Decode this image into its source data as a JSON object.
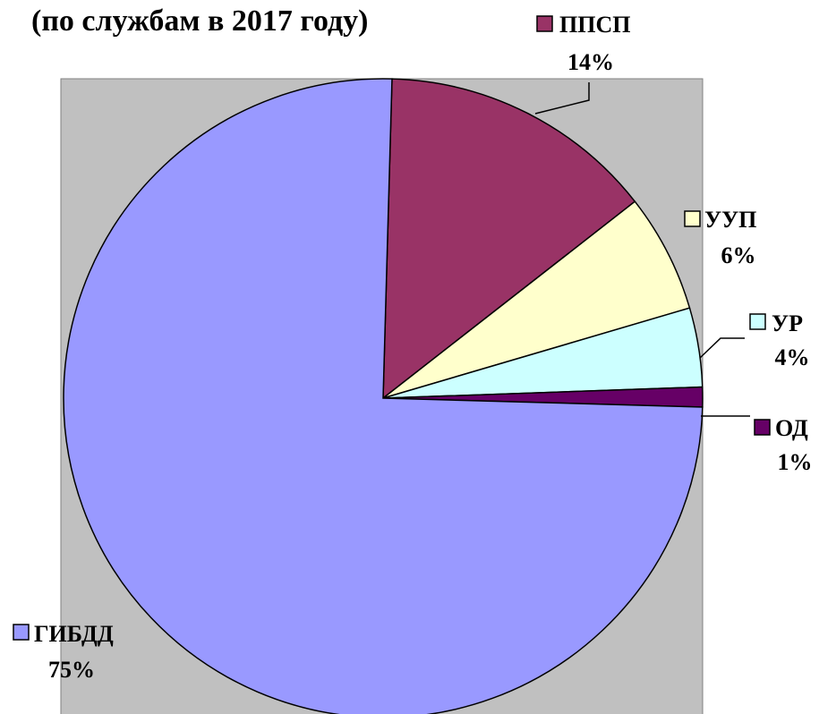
{
  "chart_data": {
    "type": "pie",
    "title": "(по службам в 2017 году)",
    "categories": [
      "ППСП",
      "УУП",
      "УР",
      "ОД",
      "ГИБДД"
    ],
    "values": [
      14,
      6,
      4,
      1,
      75
    ],
    "value_labels": [
      "14%",
      "6%",
      "4%",
      "1%",
      "75%"
    ],
    "colors": [
      "#993366",
      "#ffffcc",
      "#ccffff",
      "#660066",
      "#9999ff"
    ]
  }
}
